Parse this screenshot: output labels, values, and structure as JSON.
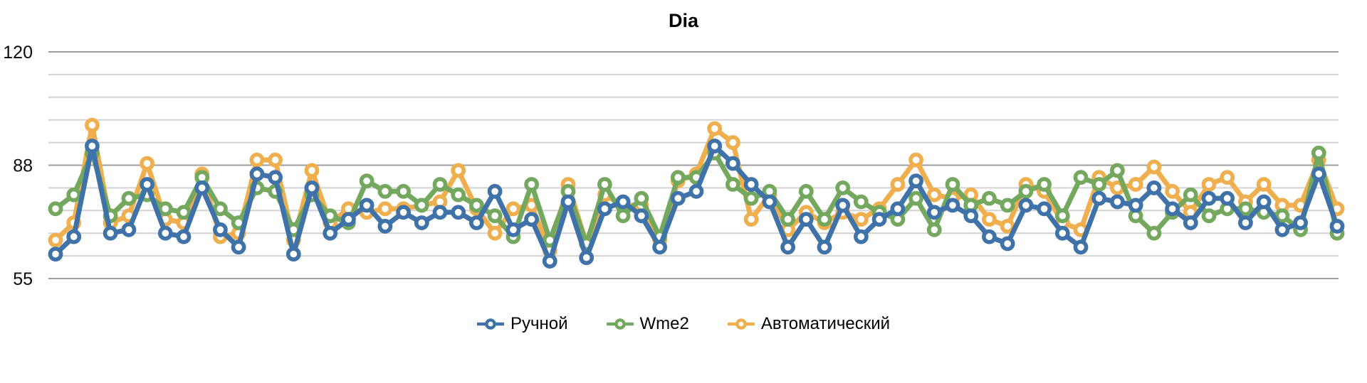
{
  "title": "Dia",
  "chart_data": {
    "type": "line",
    "title": "Dia",
    "grid": true,
    "legend_position": "bottom",
    "x_count": 71,
    "y_axis": {
      "min": 55,
      "max": 120,
      "gridline_step": 6.5,
      "labels": [
        {
          "value": 120,
          "text": "120"
        },
        {
          "value": 87.5,
          "text": "88"
        },
        {
          "value": 55,
          "text": "55"
        }
      ]
    },
    "colors": {
      "grid_minor": "#d2d2d2",
      "grid_major": "#9c9c9c",
      "background": "#ffffff"
    },
    "series": [
      {
        "name": "Ручной",
        "color": "#3e72a8",
        "values": [
          62,
          67,
          93,
          68,
          69,
          82,
          68,
          67,
          81,
          69,
          64,
          85,
          84,
          62,
          81,
          68,
          72,
          76,
          70,
          74,
          71,
          74,
          74,
          71,
          80,
          69,
          72,
          60,
          77,
          61,
          75,
          77,
          73,
          64,
          78,
          80,
          93,
          88,
          82,
          77,
          64,
          72,
          64,
          76,
          67,
          72,
          75,
          83,
          74,
          76,
          73,
          67,
          65,
          76,
          75,
          68,
          64,
          78,
          77,
          76,
          81,
          75,
          71,
          78,
          78,
          71,
          77,
          69,
          71,
          85,
          70
        ]
      },
      {
        "name": "Wme2",
        "color": "#73a85e",
        "values": [
          75,
          79,
          91,
          73,
          78,
          79,
          75,
          74,
          84,
          75,
          71,
          81,
          80,
          69,
          79,
          73,
          71,
          83,
          80,
          80,
          76,
          82,
          79,
          76,
          73,
          67,
          82,
          66,
          80,
          65,
          82,
          73,
          78,
          67,
          84,
          84,
          91,
          82,
          78,
          80,
          72,
          80,
          72,
          81,
          77,
          74,
          72,
          78,
          69,
          82,
          76,
          78,
          76,
          80,
          82,
          73,
          84,
          82,
          86,
          73,
          68,
          74,
          79,
          73,
          75,
          75,
          74,
          73,
          69,
          91,
          68
        ]
      },
      {
        "name": "Автоматический",
        "color": "#f0af4e",
        "values": [
          66,
          71,
          99,
          71,
          73,
          88,
          72,
          71,
          85,
          67,
          68,
          89,
          89,
          66,
          86,
          71,
          75,
          74,
          75,
          75,
          76,
          77,
          86,
          75,
          68,
          75,
          76,
          63,
          82,
          65,
          79,
          76,
          76,
          66,
          83,
          85,
          98,
          94,
          72,
          79,
          69,
          74,
          71,
          74,
          72,
          75,
          82,
          89,
          79,
          78,
          79,
          72,
          70,
          82,
          80,
          71,
          69,
          84,
          81,
          82,
          87,
          80,
          74,
          82,
          84,
          77,
          82,
          76,
          76,
          89,
          75
        ]
      }
    ]
  }
}
